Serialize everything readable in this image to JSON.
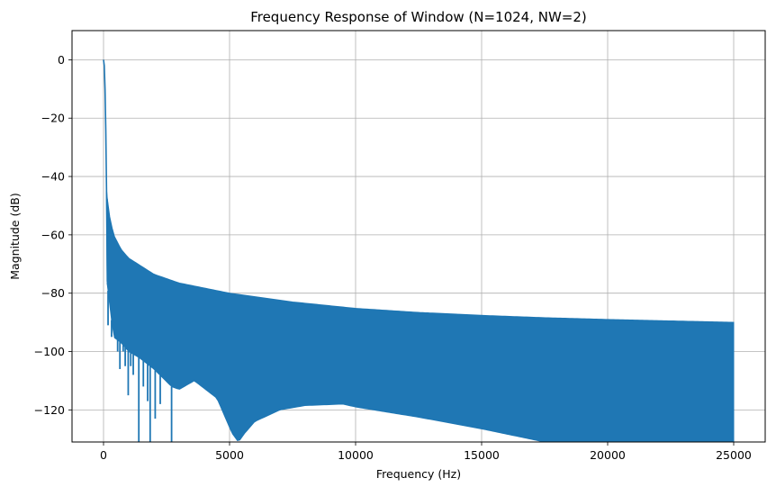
{
  "chart_data": {
    "type": "line",
    "title": "Frequency Response of Window (N=1024, NW=2)",
    "xlabel": "Frequency (Hz)",
    "ylabel": "Magnitude (dB)",
    "xlim": [
      -1250,
      26250
    ],
    "ylim": [
      -131,
      10
    ],
    "xticks": [
      0,
      5000,
      10000,
      15000,
      20000,
      25000
    ],
    "yticks": [
      0,
      -20,
      -40,
      -60,
      -80,
      -100,
      -120
    ],
    "xtick_labels": [
      "0",
      "5000",
      "10000",
      "15000",
      "20000",
      "25000"
    ],
    "ytick_labels": [
      "0",
      "−20",
      "−40",
      "−60",
      "−80",
      "−100",
      "−120"
    ],
    "grid": true,
    "line_color": "#1f77b4",
    "series": [
      {
        "name": "window response",
        "mainlobe": {
          "x": [
            0,
            30,
            60,
            90,
            120,
            150
          ],
          "y": [
            0,
            -2,
            -10,
            -24,
            -45,
            -76
          ]
        },
        "upper_envelope": {
          "x": [
            120,
            200,
            400,
            700,
            1000,
            2000,
            3000,
            5000,
            7500,
            10000,
            12500,
            15000,
            17500,
            20000,
            22500,
            25000
          ],
          "y": [
            -45,
            -52,
            -60,
            -65,
            -68,
            -73.5,
            -76.5,
            -80,
            -83,
            -85.2,
            -86.6,
            -87.6,
            -88.4,
            -89,
            -89.5,
            -90
          ]
        },
        "lower_envelope": {
          "x": [
            150,
            400,
            700,
            1000,
            1400,
            2000,
            2700,
            3000,
            3600,
            4500,
            5100,
            5350,
            5600,
            6000,
            7000,
            8000,
            9500,
            10000,
            12500,
            15000,
            17500,
            20000,
            25000
          ],
          "y": [
            -77,
            -95,
            -97,
            -100,
            -102,
            -106,
            -112,
            -113,
            -110,
            -116,
            -128,
            -131,
            -128,
            -124,
            -120,
            -118.5,
            -118,
            -119,
            -122.5,
            -126.5,
            -131,
            -131,
            -131
          ]
        },
        "dips": [
          {
            "x": 180,
            "y": -91
          },
          {
            "x": 320,
            "y": -95
          },
          {
            "x": 470,
            "y": -92
          },
          {
            "x": 560,
            "y": -100
          },
          {
            "x": 650,
            "y": -106
          },
          {
            "x": 780,
            "y": -100
          },
          {
            "x": 860,
            "y": -105
          },
          {
            "x": 980,
            "y": -115
          },
          {
            "x": 1080,
            "y": -105
          },
          {
            "x": 1180,
            "y": -108
          },
          {
            "x": 1400,
            "y": -131
          },
          {
            "x": 1580,
            "y": -112
          },
          {
            "x": 1750,
            "y": -117
          },
          {
            "x": 1850,
            "y": -131
          },
          {
            "x": 2050,
            "y": -123
          },
          {
            "x": 2250,
            "y": -118
          },
          {
            "x": 2700,
            "y": -131
          }
        ]
      }
    ]
  }
}
